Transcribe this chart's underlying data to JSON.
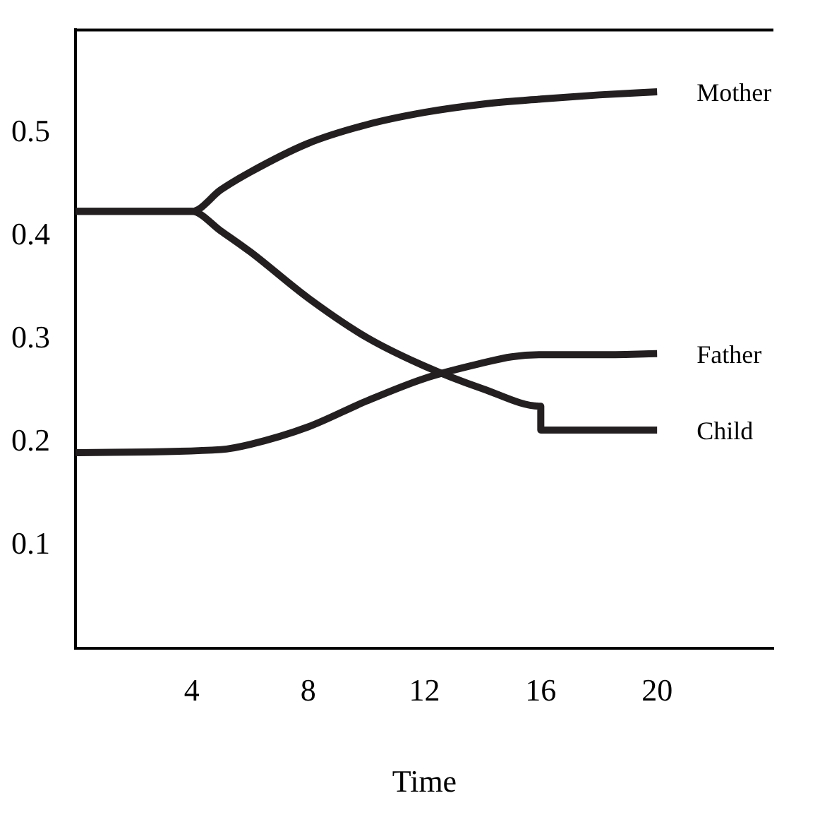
{
  "chart_data": {
    "type": "line",
    "xlabel": "Time",
    "xlim": [
      0,
      24
    ],
    "ylim": [
      0,
      0.6
    ],
    "xticks": [
      4,
      8,
      12,
      16,
      20
    ],
    "yticks": [
      0.1,
      0.2,
      0.3,
      0.4,
      0.5
    ],
    "marker": "none",
    "line_style": "solid",
    "legend": false,
    "series": [
      {
        "name": "Mother",
        "color": "#231f20",
        "x": [
          0,
          4,
          5,
          6,
          8,
          10,
          12,
          14,
          16,
          18,
          20
        ],
        "values": [
          0.424,
          0.424,
          0.445,
          0.462,
          0.49,
          0.508,
          0.52,
          0.528,
          0.533,
          0.537,
          0.54
        ]
      },
      {
        "name": "Father",
        "color": "#231f20",
        "x": [
          0,
          5,
          6,
          8,
          10,
          12,
          14,
          15,
          16,
          18,
          20
        ],
        "values": [
          0.19,
          0.193,
          0.198,
          0.215,
          0.24,
          0.262,
          0.277,
          0.283,
          0.285,
          0.285,
          0.286
        ]
      },
      {
        "name": "Child",
        "color": "#231f20",
        "x": [
          0,
          4,
          5,
          6,
          8,
          10,
          12,
          14,
          16,
          16,
          18,
          20
        ],
        "values": [
          0.424,
          0.424,
          0.405,
          0.385,
          0.34,
          0.302,
          0.274,
          0.252,
          0.235,
          0.212,
          0.212,
          0.212
        ]
      }
    ]
  }
}
